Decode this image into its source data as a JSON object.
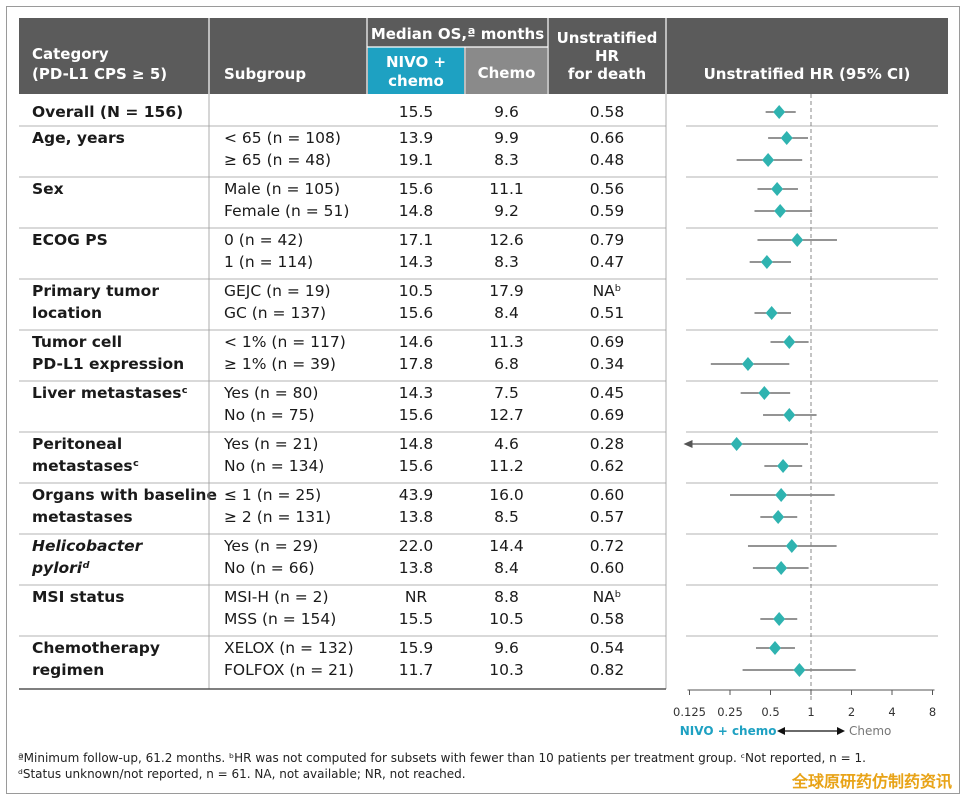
{
  "header": {
    "category": [
      "Category",
      "(PD-L1 CPS ≥ 5)"
    ],
    "subgroup": "Subgroup",
    "median_os": "Median OS,ª months",
    "nivo_chemo": [
      "NIVO +",
      "chemo"
    ],
    "chemo": "Chemo",
    "hr_for_death": [
      "Unstratified",
      "HR",
      "for death"
    ],
    "hr_ci": "Unstratified HR (95% CI)"
  },
  "axis": {
    "tick_labels": [
      "0.125",
      "0.25",
      "0.5",
      "1",
      "2",
      "4",
      "8"
    ],
    "left_label": "NIVO + chemo",
    "right_label": "Chemo"
  },
  "footnotes": [
    "ªMinimum follow-up, 61.2 months. ᵇHR was not computed for subsets with fewer than 10 patients per treatment group. ᶜNot reported, n = 1.",
    "ᵈStatus unknown/not reported, n = 61. NA, not available; NR, not reached."
  ],
  "watermark": "全球原研药仿制药资讯",
  "colors": {
    "header_bg": "#5b5b5b",
    "nivo_bg": "#1ea1c2",
    "chemo_bg": "#8a8a8a",
    "marker": "#2fb3b0",
    "ci_line": "#555555"
  },
  "chart_data": {
    "type": "forest",
    "title": "Unstratified HR (95% CI)",
    "x_scale": "log2",
    "xlim": [
      0.125,
      8
    ],
    "reference_line": 1,
    "groups": [
      {
        "label": [
          "Overall (N = 156)"
        ],
        "rows": [
          {
            "subgroup": "",
            "nivo": "15.5",
            "chemo": "9.6",
            "hr": "0.58",
            "hr_value": 0.58,
            "ci": [
              0.46,
              0.77
            ]
          }
        ]
      },
      {
        "label": [
          "Age, years"
        ],
        "rows": [
          {
            "subgroup": "< 65 (n = 108)",
            "nivo": "13.9",
            "chemo": "9.9",
            "hr": "0.66",
            "hr_value": 0.66,
            "ci": [
              0.48,
              0.95
            ]
          },
          {
            "subgroup": "≥ 65 (n = 48)",
            "nivo": "19.1",
            "chemo": "8.3",
            "hr": "0.48",
            "hr_value": 0.48,
            "ci": [
              0.28,
              0.86
            ]
          }
        ]
      },
      {
        "label": [
          "Sex"
        ],
        "rows": [
          {
            "subgroup": "Male (n = 105)",
            "nivo": "15.6",
            "chemo": "11.1",
            "hr": "0.56",
            "hr_value": 0.56,
            "ci": [
              0.4,
              0.8
            ]
          },
          {
            "subgroup": "Female (n = 51)",
            "nivo": "14.8",
            "chemo": "9.2",
            "hr": "0.59",
            "hr_value": 0.59,
            "ci": [
              0.38,
              1.02
            ]
          }
        ]
      },
      {
        "label": [
          "ECOG PS"
        ],
        "rows": [
          {
            "subgroup": "0 (n = 42)",
            "nivo": "17.1",
            "chemo": "12.6",
            "hr": "0.79",
            "hr_value": 0.79,
            "ci": [
              0.4,
              1.56
            ]
          },
          {
            "subgroup": "1 (n = 114)",
            "nivo": "14.3",
            "chemo": "8.3",
            "hr": "0.47",
            "hr_value": 0.47,
            "ci": [
              0.35,
              0.71
            ]
          }
        ]
      },
      {
        "label": [
          "Primary tumor",
          "location"
        ],
        "rows": [
          {
            "subgroup": "GEJC (n = 19)",
            "nivo": "10.5",
            "chemo": "17.9",
            "hr": "NAᵇ",
            "hr_value": null,
            "ci": null
          },
          {
            "subgroup": "GC (n = 137)",
            "nivo": "15.6",
            "chemo": "8.4",
            "hr": "0.51",
            "hr_value": 0.51,
            "ci": [
              0.38,
              0.71
            ]
          }
        ]
      },
      {
        "label": [
          "Tumor cell",
          "PD-L1 expression"
        ],
        "rows": [
          {
            "subgroup": "< 1% (n = 117)",
            "nivo": "14.6",
            "chemo": "11.3",
            "hr": "0.69",
            "hr_value": 0.69,
            "ci": [
              0.5,
              0.96
            ]
          },
          {
            "subgroup": "≥ 1% (n = 39)",
            "nivo": "17.8",
            "chemo": "6.8",
            "hr": "0.34",
            "hr_value": 0.34,
            "ci": [
              0.18,
              0.69
            ]
          }
        ]
      },
      {
        "label": [
          "Liver metastasesᶜ"
        ],
        "rows": [
          {
            "subgroup": "Yes (n = 80)",
            "nivo": "14.3",
            "chemo": "7.5",
            "hr": "0.45",
            "hr_value": 0.45,
            "ci": [
              0.3,
              0.7
            ]
          },
          {
            "subgroup": "No (n = 75)",
            "nivo": "15.6",
            "chemo": "12.7",
            "hr": "0.69",
            "hr_value": 0.69,
            "ci": [
              0.44,
              1.1
            ]
          }
        ]
      },
      {
        "label": [
          "Peritoneal",
          "metastasesᶜ"
        ],
        "rows": [
          {
            "subgroup": "Yes (n = 21)",
            "nivo": "14.8",
            "chemo": "4.6",
            "hr": "0.28",
            "hr_value": 0.28,
            "ci": [
              0.125,
              0.95
            ],
            "ci_arrow_left": true
          },
          {
            "subgroup": "No (n = 134)",
            "nivo": "15.6",
            "chemo": "11.2",
            "hr": "0.62",
            "hr_value": 0.62,
            "ci": [
              0.45,
              0.86
            ]
          }
        ]
      },
      {
        "label": [
          "Organs with baseline",
          "metastases"
        ],
        "rows": [
          {
            "subgroup": "≤ 1 (n = 25)",
            "nivo": "43.9",
            "chemo": "16.0",
            "hr": "0.60",
            "hr_value": 0.6,
            "ci": [
              0.25,
              1.5
            ]
          },
          {
            "subgroup": "≥ 2 (n = 131)",
            "nivo": "13.8",
            "chemo": "8.5",
            "hr": "0.57",
            "hr_value": 0.57,
            "ci": [
              0.42,
              0.79
            ]
          }
        ]
      },
      {
        "label": [
          "Helicobacter",
          "pyloriᵈ"
        ],
        "italic": true,
        "rows": [
          {
            "subgroup": "Yes (n = 29)",
            "nivo": "22.0",
            "chemo": "14.4",
            "hr": "0.72",
            "hr_value": 0.72,
            "ci": [
              0.34,
              1.55
            ]
          },
          {
            "subgroup": "No (n = 66)",
            "nivo": "13.8",
            "chemo": "8.4",
            "hr": "0.60",
            "hr_value": 0.6,
            "ci": [
              0.37,
              0.96
            ]
          }
        ]
      },
      {
        "label": [
          "MSI status"
        ],
        "rows": [
          {
            "subgroup": "MSI-H (n = 2)",
            "nivo": "NR",
            "chemo": "8.8",
            "hr": "NAᵇ",
            "hr_value": null,
            "ci": null
          },
          {
            "subgroup": "MSS (n = 154)",
            "nivo": "15.5",
            "chemo": "10.5",
            "hr": "0.58",
            "hr_value": 0.58,
            "ci": [
              0.42,
              0.79
            ]
          }
        ]
      },
      {
        "label": [
          "Chemotherapy",
          "regimen"
        ],
        "rows": [
          {
            "subgroup": "XELOX (n = 132)",
            "nivo": "15.9",
            "chemo": "9.6",
            "hr": "0.54",
            "hr_value": 0.54,
            "ci": [
              0.39,
              0.76
            ]
          },
          {
            "subgroup": "FOLFOX (n = 21)",
            "nivo": "11.7",
            "chemo": "10.3",
            "hr": "0.82",
            "hr_value": 0.82,
            "ci": [
              0.31,
              2.15
            ]
          }
        ]
      }
    ]
  }
}
